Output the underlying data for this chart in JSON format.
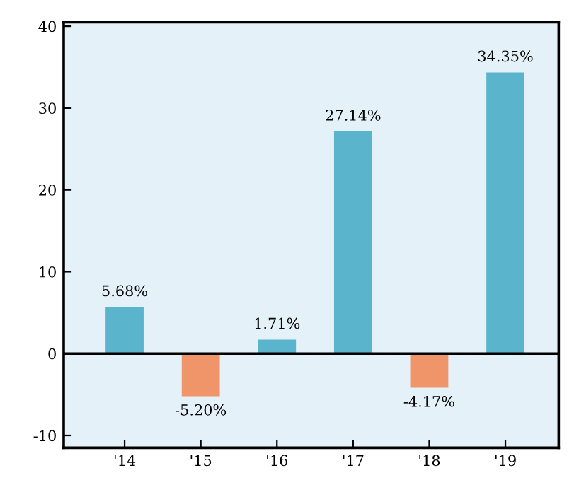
{
  "chart_data": {
    "type": "bar",
    "categories": [
      "'14",
      "'15",
      "'16",
      "'17",
      "'18",
      "'19"
    ],
    "values": [
      5.68,
      -5.2,
      1.71,
      27.14,
      -4.17,
      34.35
    ],
    "colors": [
      "#5ab4cc",
      "#f0956a",
      "#5ab4cc",
      "#5ab4cc",
      "#f0956a",
      "#5ab4cc"
    ],
    "value_labels": [
      "5.68%",
      "-5.20%",
      "1.71%",
      "27.14%",
      "-4.17%",
      "34.35%"
    ],
    "ylim": [
      -11.5,
      40.5
    ],
    "yticks": [
      -10,
      0,
      10,
      20,
      30,
      40
    ],
    "ref_lines": [
      {
        "axis": "y",
        "value": 0,
        "color": "#000000"
      }
    ],
    "grid": false
  }
}
